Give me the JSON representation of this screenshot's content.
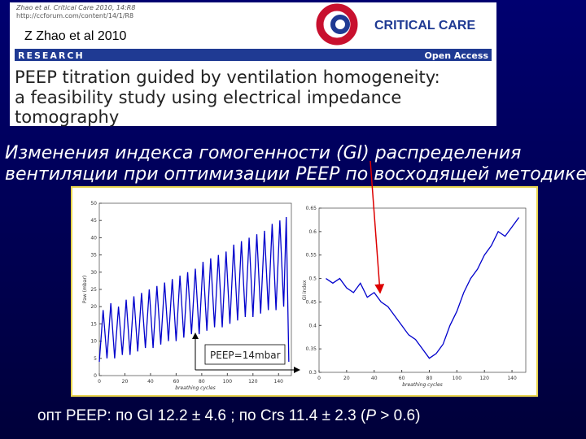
{
  "header": {
    "citation": "Zhao et al. Critical Care 2010, 14:R8",
    "url": "http://ccforum.com/content/14/1/R8",
    "author_note": "Z Zhao et al 2010",
    "journal": "CRITICAL CARE",
    "section": "RESEARCH",
    "access": "Open Access",
    "paper_title": [
      "PEEP titration guided by ventilation homogeneity:",
      "a feasibility study using electrical impedance",
      "tomography"
    ]
  },
  "slide_title": [
    "Изменения индекса гомогенности (GI) распределения",
    "вентиляции при оптимизации PEEP по восходящей методике"
  ],
  "chart_data": [
    {
      "type": "line",
      "xlabel": "breathing cycles",
      "ylabel": "Paw (mbar)",
      "annotation": "PEEP=14mbar",
      "color": "#0000cc",
      "x": [
        0,
        3,
        6,
        9,
        12,
        15,
        18,
        21,
        24,
        27,
        30,
        33,
        36,
        39,
        42,
        45,
        48,
        51,
        54,
        57,
        60,
        63,
        66,
        69,
        72,
        75,
        78,
        81,
        84,
        87,
        90,
        93,
        96,
        99,
        102,
        105,
        108,
        111,
        114,
        117,
        120,
        123,
        126,
        129,
        132,
        135,
        138,
        141,
        144,
        146,
        148
      ],
      "values": [
        4,
        19,
        5,
        21,
        5,
        20,
        6,
        22,
        6,
        23,
        7,
        24,
        8,
        25,
        8,
        26,
        9,
        27,
        10,
        28,
        10,
        29,
        11,
        30,
        12,
        31,
        12,
        33,
        13,
        34,
        14,
        35,
        14,
        36,
        15,
        38,
        16,
        39,
        17,
        40,
        17,
        41,
        18,
        42,
        19,
        44,
        19,
        45,
        20,
        46,
        4
      ],
      "xlim": [
        0,
        150
      ],
      "xticks": [
        0,
        20,
        40,
        60,
        80,
        100,
        120,
        140
      ],
      "ylim": [
        0,
        50
      ],
      "yticks": [
        0,
        5,
        10,
        15,
        20,
        25,
        30,
        35,
        40,
        45,
        50
      ]
    },
    {
      "type": "line",
      "xlabel": "breathing cycles",
      "ylabel": "GI index",
      "color": "#0000cc",
      "x": [
        5,
        10,
        15,
        20,
        25,
        30,
        35,
        40,
        45,
        50,
        55,
        60,
        65,
        70,
        75,
        80,
        85,
        90,
        95,
        100,
        105,
        110,
        115,
        120,
        125,
        130,
        135,
        140,
        145
      ],
      "values": [
        0.5,
        0.49,
        0.5,
        0.48,
        0.47,
        0.49,
        0.46,
        0.47,
        0.45,
        0.44,
        0.42,
        0.4,
        0.38,
        0.37,
        0.35,
        0.33,
        0.34,
        0.36,
        0.4,
        0.43,
        0.47,
        0.5,
        0.52,
        0.55,
        0.57,
        0.6,
        0.59,
        0.61,
        0.63
      ],
      "xlim": [
        0,
        150
      ],
      "xticks": [
        0,
        20,
        40,
        60,
        80,
        100,
        120,
        140
      ],
      "ylim": [
        0.3,
        0.65
      ],
      "yticks": [
        0.3,
        0.35,
        0.4,
        0.45,
        0.5,
        0.55,
        0.6,
        0.65
      ]
    }
  ],
  "footer": [
    "опт PEEP:  по GI 12.2 ± 4.6 ;  по Crs  11.4 ± 2.3 (",
    "P",
    " > 0.6)"
  ]
}
